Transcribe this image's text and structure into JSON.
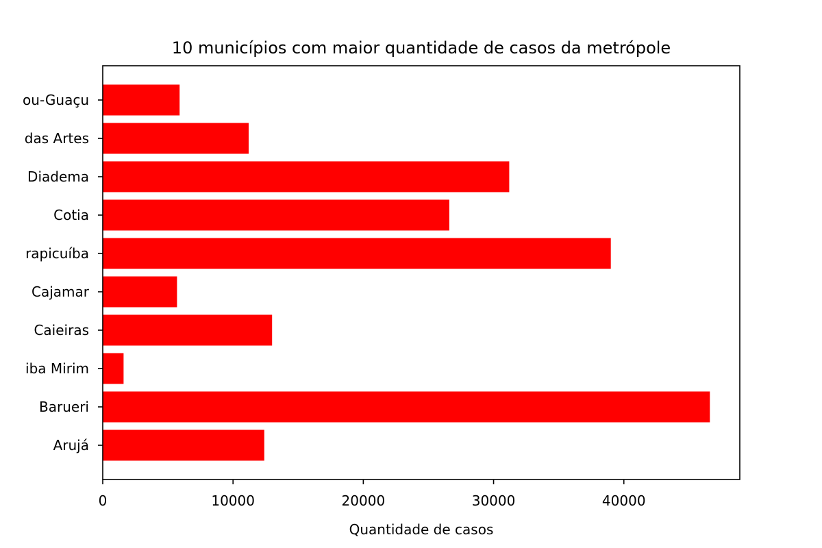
{
  "chart_data": {
    "type": "bar",
    "orientation": "horizontal",
    "title": "10 municípios com maior quantidade de casos da metrópole",
    "xlabel": "Quantidade de casos",
    "ylabel": "",
    "categories": [
      "Arujá",
      "Barueri",
      "Biritiba Mirim",
      "Caieiras",
      "Cajamar",
      "Carapicuíba",
      "Cotia",
      "Diadema",
      "Embu das Artes",
      "Embu-Guaçu"
    ],
    "visible_category_labels": [
      "Arujá",
      "Barueri",
      "iba Mirim",
      "Caieiras",
      "Cajamar",
      "rapicuíba",
      "Cotia",
      "Diadema",
      "das Artes",
      "ou-Guaçu"
    ],
    "values": [
      12400,
      46600,
      1600,
      13000,
      5700,
      39000,
      26600,
      31200,
      11200,
      5900
    ],
    "xlim": [
      0,
      48900
    ],
    "xticks": [
      "0",
      "10000",
      "20000",
      "30000",
      "40000"
    ],
    "xtick_values": [
      0,
      10000,
      20000,
      30000,
      40000
    ],
    "bar_color": "#ff0000",
    "grid": false,
    "legend": "none"
  }
}
